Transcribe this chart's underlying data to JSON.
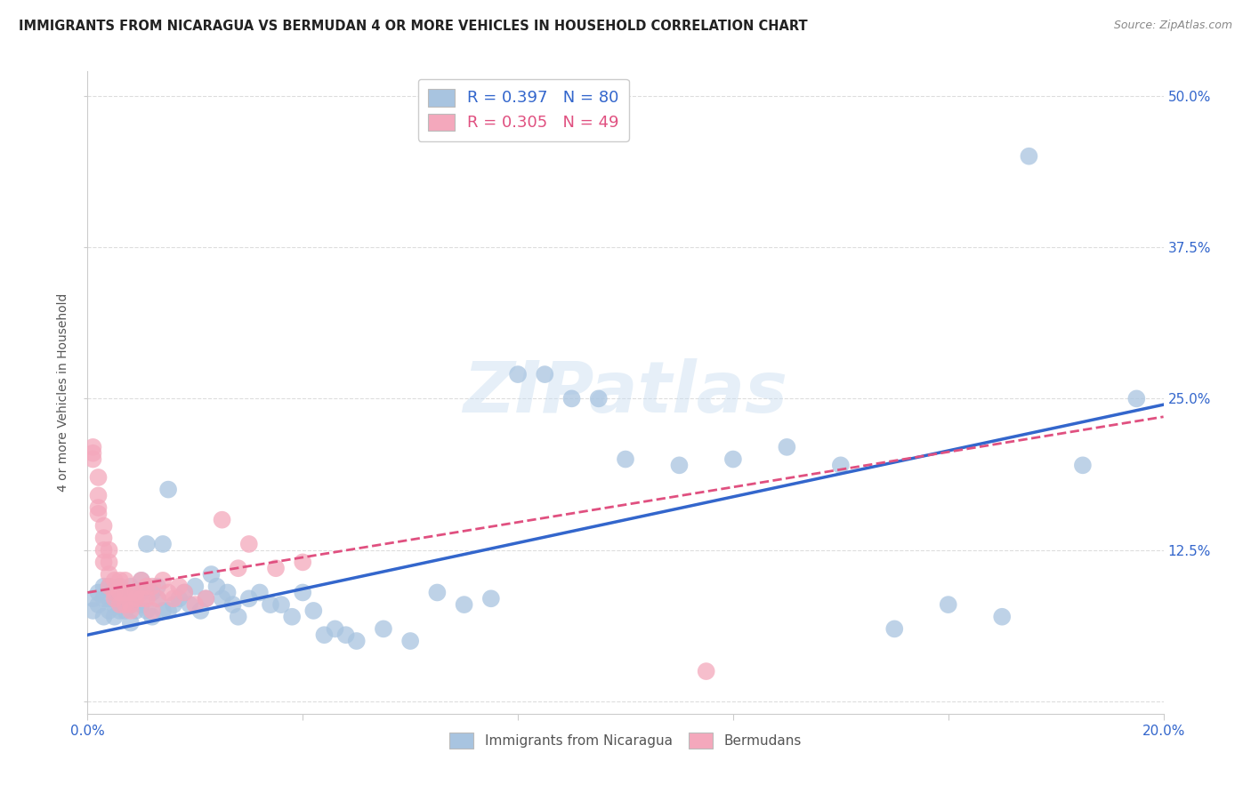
{
  "title": "IMMIGRANTS FROM NICARAGUA VS BERMUDAN 4 OR MORE VEHICLES IN HOUSEHOLD CORRELATION CHART",
  "source": "Source: ZipAtlas.com",
  "ylabel": "4 or more Vehicles in Household",
  "xlim": [
    0.0,
    0.2
  ],
  "ylim": [
    -0.01,
    0.52
  ],
  "xticks": [
    0.0,
    0.04,
    0.08,
    0.12,
    0.16,
    0.2
  ],
  "xticklabels": [
    "0.0%",
    "",
    "",
    "",
    "",
    "20.0%"
  ],
  "yticks": [
    0.0,
    0.125,
    0.25,
    0.375,
    0.5
  ],
  "yticklabels_left": [
    "",
    "",
    "",
    "",
    ""
  ],
  "yticklabels_right": [
    "",
    "12.5%",
    "25.0%",
    "37.5%",
    "50.0%"
  ],
  "blue_color": "#a8c4e0",
  "pink_color": "#f4a8bc",
  "blue_line_color": "#3366cc",
  "pink_line_color": "#e05080",
  "legend_blue_label": "R = 0.397   N = 80",
  "legend_pink_label": "R = 0.305   N = 49",
  "legend_blue_box": "#a8c4e0",
  "legend_pink_box": "#f4a8bc",
  "watermark": "ZIPatlas",
  "background_color": "#ffffff",
  "grid_color": "#dddddd",
  "blue_scatter_x": [
    0.001,
    0.001,
    0.002,
    0.002,
    0.003,
    0.003,
    0.003,
    0.004,
    0.004,
    0.004,
    0.005,
    0.005,
    0.005,
    0.006,
    0.006,
    0.006,
    0.007,
    0.007,
    0.008,
    0.008,
    0.008,
    0.009,
    0.009,
    0.01,
    0.01,
    0.01,
    0.011,
    0.011,
    0.012,
    0.012,
    0.013,
    0.013,
    0.014,
    0.014,
    0.015,
    0.015,
    0.016,
    0.017,
    0.018,
    0.019,
    0.02,
    0.021,
    0.022,
    0.023,
    0.024,
    0.025,
    0.026,
    0.027,
    0.028,
    0.03,
    0.032,
    0.034,
    0.036,
    0.038,
    0.04,
    0.042,
    0.044,
    0.046,
    0.048,
    0.05,
    0.055,
    0.06,
    0.065,
    0.07,
    0.075,
    0.08,
    0.085,
    0.09,
    0.095,
    0.1,
    0.11,
    0.12,
    0.13,
    0.14,
    0.15,
    0.16,
    0.17,
    0.175,
    0.185,
    0.195
  ],
  "blue_scatter_y": [
    0.075,
    0.085,
    0.08,
    0.09,
    0.07,
    0.085,
    0.095,
    0.075,
    0.085,
    0.095,
    0.07,
    0.08,
    0.09,
    0.075,
    0.085,
    0.095,
    0.075,
    0.085,
    0.065,
    0.08,
    0.095,
    0.075,
    0.085,
    0.08,
    0.09,
    0.1,
    0.075,
    0.13,
    0.07,
    0.09,
    0.085,
    0.095,
    0.075,
    0.13,
    0.075,
    0.175,
    0.08,
    0.085,
    0.09,
    0.08,
    0.095,
    0.075,
    0.085,
    0.105,
    0.095,
    0.085,
    0.09,
    0.08,
    0.07,
    0.085,
    0.09,
    0.08,
    0.08,
    0.07,
    0.09,
    0.075,
    0.055,
    0.06,
    0.055,
    0.05,
    0.06,
    0.05,
    0.09,
    0.08,
    0.085,
    0.27,
    0.27,
    0.25,
    0.25,
    0.2,
    0.195,
    0.2,
    0.21,
    0.195,
    0.06,
    0.08,
    0.07,
    0.45,
    0.195,
    0.25
  ],
  "pink_scatter_x": [
    0.001,
    0.001,
    0.001,
    0.002,
    0.002,
    0.002,
    0.002,
    0.003,
    0.003,
    0.003,
    0.003,
    0.004,
    0.004,
    0.004,
    0.004,
    0.005,
    0.005,
    0.005,
    0.006,
    0.006,
    0.006,
    0.007,
    0.007,
    0.007,
    0.008,
    0.008,
    0.008,
    0.009,
    0.009,
    0.01,
    0.01,
    0.011,
    0.011,
    0.012,
    0.012,
    0.013,
    0.014,
    0.015,
    0.016,
    0.017,
    0.018,
    0.02,
    0.022,
    0.025,
    0.028,
    0.03,
    0.035,
    0.04,
    0.115
  ],
  "pink_scatter_y": [
    0.21,
    0.205,
    0.2,
    0.185,
    0.17,
    0.16,
    0.155,
    0.145,
    0.135,
    0.125,
    0.115,
    0.125,
    0.115,
    0.105,
    0.095,
    0.09,
    0.1,
    0.085,
    0.09,
    0.1,
    0.08,
    0.09,
    0.1,
    0.08,
    0.09,
    0.08,
    0.075,
    0.085,
    0.09,
    0.085,
    0.1,
    0.085,
    0.095,
    0.075,
    0.095,
    0.085,
    0.1,
    0.09,
    0.085,
    0.095,
    0.09,
    0.08,
    0.085,
    0.15,
    0.11,
    0.13,
    0.11,
    0.115,
    0.025
  ],
  "blue_line_x": [
    0.0,
    0.2
  ],
  "blue_line_y": [
    0.055,
    0.245
  ],
  "pink_line_x": [
    0.0,
    0.2
  ],
  "pink_line_y": [
    0.09,
    0.235
  ]
}
